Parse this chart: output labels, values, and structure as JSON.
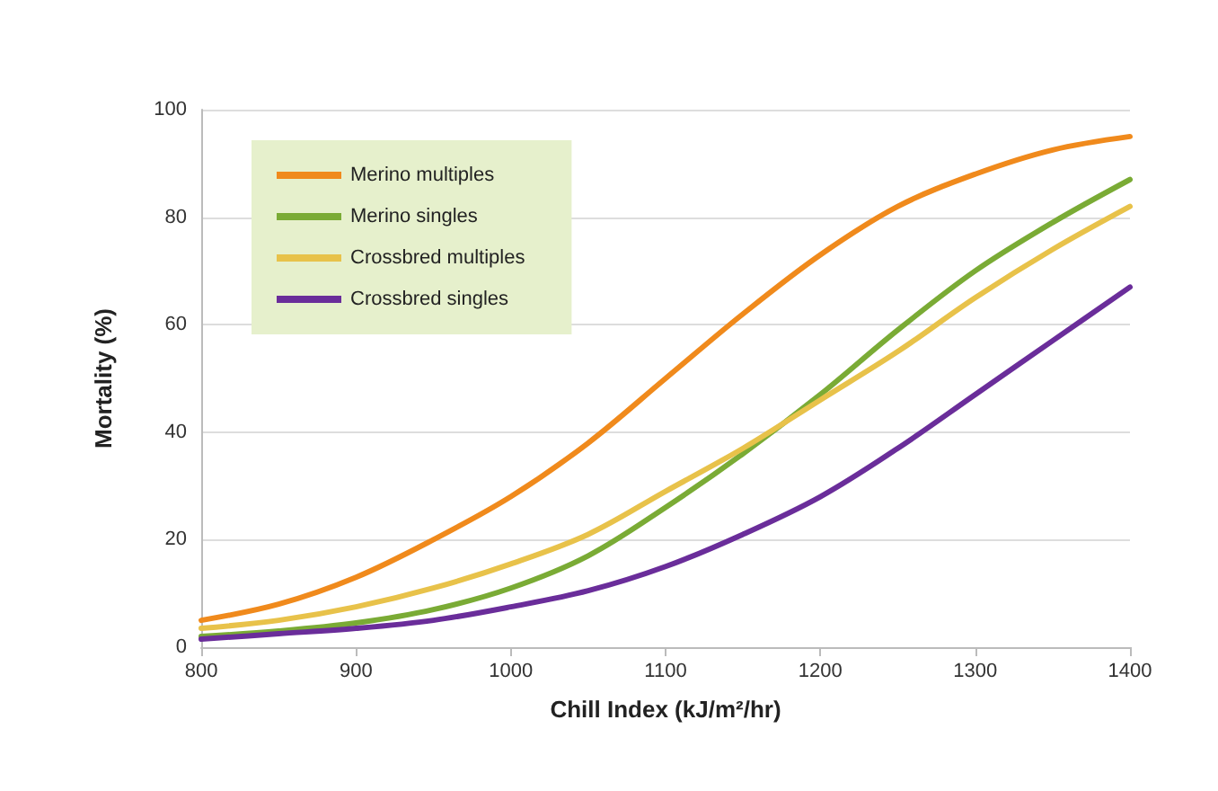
{
  "chart_data": {
    "type": "line",
    "xlabel": "Chill Index (kJ/m²/hr)",
    "ylabel": "Mortality (%)",
    "x": [
      800,
      850,
      900,
      950,
      1000,
      1050,
      1100,
      1150,
      1200,
      1250,
      1300,
      1350,
      1400
    ],
    "series": [
      {
        "name": "Merino multiples",
        "color": "#f08a1c",
        "values": [
          5,
          8,
          13,
          20,
          28,
          38,
          50,
          62,
          73,
          82,
          88,
          92.5,
          95
        ]
      },
      {
        "name": "Merino singles",
        "color": "#7aab35",
        "values": [
          2,
          3,
          4.5,
          7,
          11,
          17,
          26,
          36,
          47,
          59,
          70,
          79,
          87
        ]
      },
      {
        "name": "Crossbred multiples",
        "color": "#e8c24a",
        "values": [
          3.5,
          5,
          7.5,
          11,
          15.5,
          21,
          29,
          37,
          46,
          55,
          65,
          74,
          82
        ]
      },
      {
        "name": "Crossbred singles",
        "color": "#6a2d9a",
        "values": [
          1.5,
          2.5,
          3.5,
          5,
          7.5,
          10.5,
          15,
          21,
          28,
          37,
          47,
          57,
          67
        ]
      }
    ],
    "xlim": [
      800,
      1400
    ],
    "xticks": [
      800,
      900,
      1000,
      1100,
      1200,
      1300,
      1400
    ],
    "ylim": [
      0,
      100
    ],
    "yticks": [
      0,
      20,
      40,
      60,
      80,
      100
    ],
    "grid": "y",
    "legend": "top left",
    "marker": "none",
    "line_style": "solid"
  }
}
